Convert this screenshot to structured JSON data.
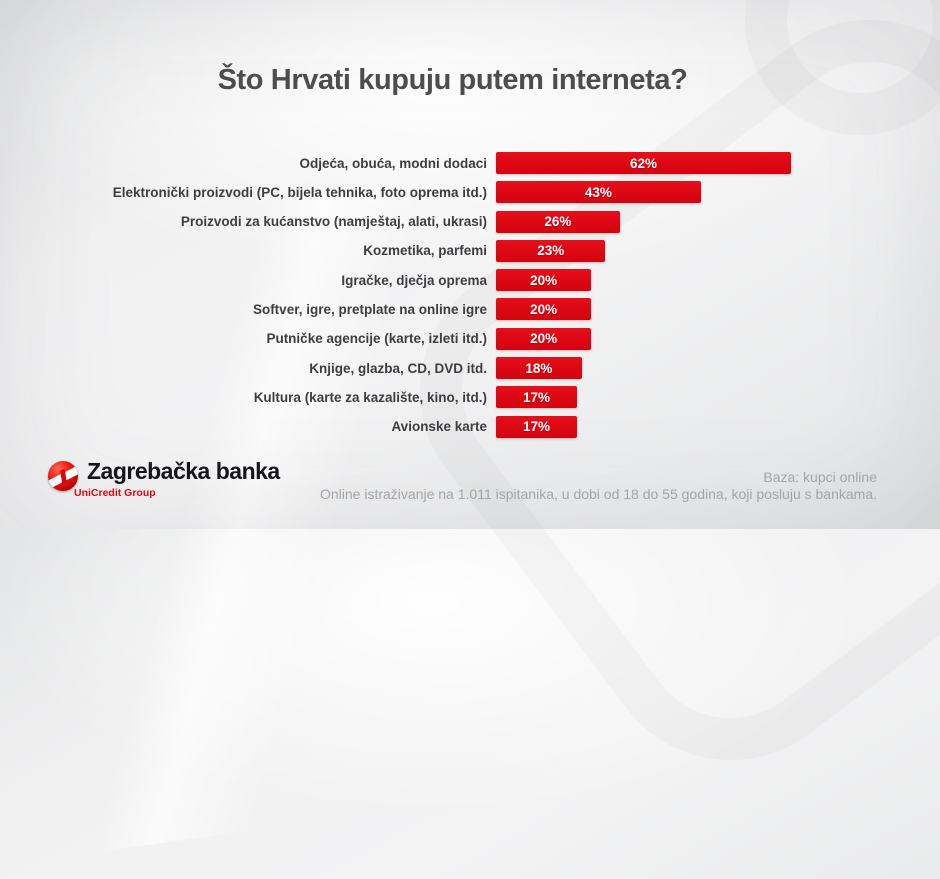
{
  "title": "Što Hrvati kupuju putem interneta?",
  "chart_data": {
    "type": "bar",
    "orientation": "horizontal",
    "categories": [
      "Odjeća, obuća, modni dodaci",
      "Elektronički proizvodi (PC, bijela tehnika, foto oprema itd.)",
      "Proizvodi za kućanstvo (namještaj, alati, ukrasi)",
      "Kozmetika, parfemi",
      "Igračke, dječja oprema",
      "Softver, igre, pretplate na online igre",
      "Putničke agencije (karte, izleti itd.)",
      "Knjige, glazba, CD, DVD itd.",
      "Kultura (karte za kazalište, kino, itd.)",
      "Avionske karte"
    ],
    "values": [
      62,
      43,
      26,
      23,
      20,
      20,
      20,
      18,
      17,
      17
    ],
    "value_labels": [
      "62%",
      "43%",
      "26%",
      "23%",
      "20%",
      "20%",
      "20%",
      "18%",
      "17%",
      "17%"
    ],
    "title": "Što Hrvati kupuju putem interneta?",
    "xlabel": "",
    "ylabel": "",
    "xlim": [
      0,
      65
    ],
    "grid": false,
    "legend": false,
    "bar_color": "#dc0713",
    "data_labels_position": "center-inside"
  },
  "footer": {
    "logo": {
      "brand": "Zagrebačka banka",
      "group": "UniCredit Group"
    },
    "note_line1": "Baza: kupci online",
    "note_line2": "Online istraživanje na 1.011 ispitanika, u dobi od 18 do 55 godina, koji posluju s bankama."
  },
  "colors": {
    "accent_red": "#dc0713",
    "title_gray": "#4d4d4f",
    "label_gray": "#3e3e40",
    "note_gray": "#a4a5a7",
    "background": "#efeff0"
  }
}
